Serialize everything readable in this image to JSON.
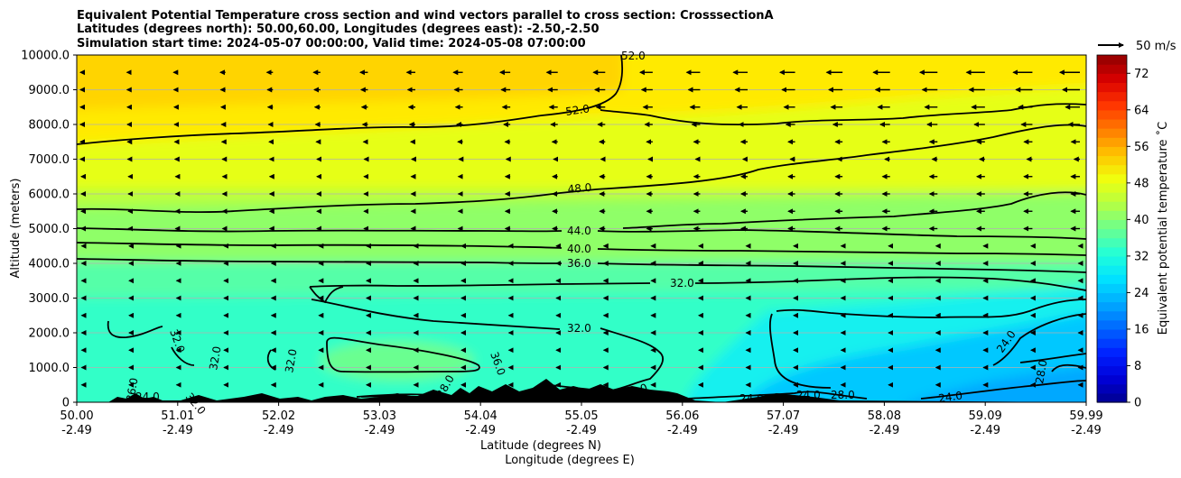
{
  "chart_data": {
    "type": "contour",
    "title_lines": [
      "Equivalent Potential Temperature cross section and wind vectors parallel to cross section: CrosssectionA",
      "Latitudes (degrees north): 50.00,60.00, Longitudes (degrees east): -2.50,-2.50",
      "Simulation start time: 2024-05-07 00:00:00, Valid time: 2024-05-08 07:00:00"
    ],
    "xlabel_lines": [
      "Latitude (degrees N)",
      "Longitude (degrees E)"
    ],
    "ylabel": "Altitude (meters)",
    "xlim": [
      50.0,
      59.99
    ],
    "ylim": [
      0,
      10000
    ],
    "x_ticks": [
      {
        "lat": "50.00",
        "lon": "-2.49"
      },
      {
        "lat": "51.01",
        "lon": "-2.49"
      },
      {
        "lat": "52.02",
        "lon": "-2.49"
      },
      {
        "lat": "53.03",
        "lon": "-2.49"
      },
      {
        "lat": "54.04",
        "lon": "-2.49"
      },
      {
        "lat": "55.05",
        "lon": "-2.49"
      },
      {
        "lat": "56.06",
        "lon": "-2.49"
      },
      {
        "lat": "57.07",
        "lon": "-2.49"
      },
      {
        "lat": "58.08",
        "lon": "-2.49"
      },
      {
        "lat": "59.09",
        "lon": "-2.49"
      },
      {
        "lat": "59.99",
        "lon": "-2.49"
      }
    ],
    "y_ticks": [
      "0",
      "1000.0",
      "2000.0",
      "3000.0",
      "4000.0",
      "5000.0",
      "6000.0",
      "7000.0",
      "8000.0",
      "9000.0",
      "10000.0"
    ],
    "grid": "horizontal",
    "colorbar": {
      "label": "Equivalent potential temperature ˚C",
      "min": 0,
      "max": 76,
      "ticks": [
        "0",
        "8",
        "16",
        "24",
        "32",
        "40",
        "48",
        "56",
        "64",
        "72"
      ],
      "colors": [
        "#00008f",
        "#0000d9",
        "#0022ff",
        "#0066ff",
        "#00aaff",
        "#00e2ff",
        "#22ffd8",
        "#6bff8f",
        "#b4ff44",
        "#f0ff0e",
        "#ffc400",
        "#ff7c00",
        "#ff3500",
        "#d90000",
        "#8f0000"
      ]
    },
    "wind_key": {
      "label": "50 m/s",
      "speed": 50
    },
    "contours": [
      {
        "level": "52.0",
        "altitude_at_start": 7400,
        "altitude_at_end": 8600
      },
      {
        "level": "48.0",
        "altitude_at_start": 5500,
        "altitude_at_end": 5900
      },
      {
        "level": "44.0",
        "altitude_at_start": 5000,
        "altitude_at_end": 4500
      },
      {
        "level": "40.0",
        "altitude_at_start": 4600,
        "altitude_at_end": 4300
      },
      {
        "level": "36.0",
        "altitude_at_start": 4100,
        "altitude_at_end": 3800
      },
      {
        "level": "32.0",
        "altitude_at_start": 3400,
        "altitude_at_end": 3000
      },
      {
        "level": "28.0"
      },
      {
        "level": "24.0"
      }
    ],
    "inline_labels": [
      "52.0",
      "52.0",
      "48.0",
      "44.0",
      "40.0",
      "36.0",
      "32.0",
      "32.0",
      "32.0",
      "32.0",
      "32.0",
      "36.0",
      "28.0",
      "28.0",
      "24.0",
      "24.0",
      "24.0",
      "24.0",
      "32.0",
      "36.0",
      "28.0",
      "24.0",
      "28.0"
    ]
  }
}
